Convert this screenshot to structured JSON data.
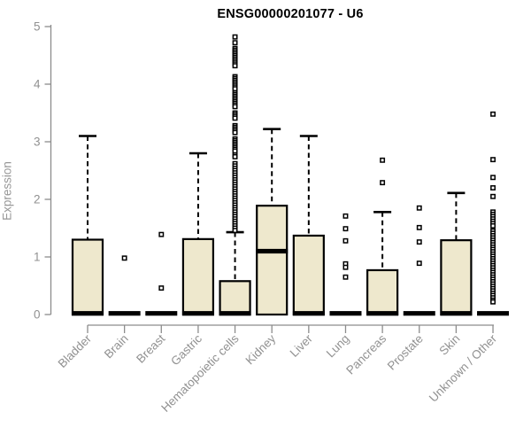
{
  "figure": {
    "title": "ENSG00000201077 - U6",
    "ylabel": "Expression"
  },
  "colors": {
    "box_fill": "#EEE8CD",
    "box_border": "#000000",
    "median": "#000000",
    "whisker": "#000000",
    "outlier_stroke": "#000000",
    "outlier_fill": "#FFFFFF",
    "axis": "#8C8C8C",
    "tick_label": "#919191",
    "title_color": "#000000"
  },
  "chart_data": {
    "type": "boxplot",
    "title": "ENSG00000201077 - U6",
    "xlabel": "",
    "ylabel": "Expression",
    "ylim": [
      0,
      5
    ],
    "yticks": [
      0,
      1,
      2,
      3,
      4,
      5
    ],
    "grid": false,
    "legend": false,
    "categories": [
      "Bladder",
      "Brain",
      "Breast",
      "Gastric",
      "Hematopoietic cells",
      "Kidney",
      "Liver",
      "Lung",
      "Pancreas",
      "Prostate",
      "Skin",
      "Unknown / Other"
    ],
    "series": [
      {
        "name": "Bladder",
        "q1": 0,
        "median": 0.02,
        "q3": 1.3,
        "whisker_low": 0,
        "whisker_high": 3.1,
        "outliers": []
      },
      {
        "name": "Brain",
        "q1": 0,
        "median": 0.02,
        "q3": 0,
        "whisker_low": 0,
        "whisker_high": 0,
        "outliers": [
          0.98
        ]
      },
      {
        "name": "Breast",
        "q1": 0,
        "median": 0.02,
        "q3": 0,
        "whisker_low": 0,
        "whisker_high": 0,
        "outliers": [
          1.39,
          0.46
        ]
      },
      {
        "name": "Gastric",
        "q1": 0,
        "median": 0.02,
        "q3": 1.31,
        "whisker_low": 0,
        "whisker_high": 2.8,
        "outliers": []
      },
      {
        "name": "Hematopoietic cells",
        "q1": 0,
        "median": 0.02,
        "q3": 0.58,
        "whisker_low": 0,
        "whisker_high": 1.43,
        "outliers": [
          4.82,
          4.72,
          4.62,
          4.59,
          4.56,
          4.53,
          4.5,
          4.47,
          4.44,
          4.41,
          4.38,
          4.35,
          4.32,
          4.13,
          4.1,
          4.07,
          4.04,
          4.01,
          3.98,
          3.95,
          3.92,
          3.85,
          3.82,
          3.79,
          3.76,
          3.73,
          3.7,
          3.67,
          3.64,
          3.61,
          3.5,
          3.47,
          3.44,
          3.41,
          3.28,
          3.25,
          3.22,
          3.19,
          3.16,
          3.05,
          3.02,
          2.99,
          2.96,
          2.93,
          2.9,
          2.87,
          2.84,
          2.77,
          2.74,
          2.62,
          2.58,
          2.54,
          2.5,
          2.46,
          2.42,
          2.38,
          2.34,
          2.3,
          2.26,
          2.22,
          2.18,
          2.14,
          2.1,
          2.06,
          2.02,
          1.98,
          1.94,
          1.9,
          1.86,
          1.82,
          1.78,
          1.74,
          1.7,
          1.66,
          1.62,
          1.58,
          1.54,
          1.5,
          1.46
        ]
      },
      {
        "name": "Kidney",
        "q1": 0,
        "median": 1.1,
        "q3": 1.89,
        "whisker_low": 0,
        "whisker_high": 3.22,
        "outliers": []
      },
      {
        "name": "Liver",
        "q1": 0,
        "median": 0.02,
        "q3": 1.37,
        "whisker_low": 0,
        "whisker_high": 3.1,
        "outliers": []
      },
      {
        "name": "Lung",
        "q1": 0,
        "median": 0.02,
        "q3": 0,
        "whisker_low": 0,
        "whisker_high": 0,
        "outliers": [
          1.71,
          1.49,
          1.28,
          0.88,
          0.82,
          0.65
        ]
      },
      {
        "name": "Pancreas",
        "q1": 0,
        "median": 0.02,
        "q3": 0.77,
        "whisker_low": 0,
        "whisker_high": 1.78,
        "outliers": [
          2.68,
          2.29
        ]
      },
      {
        "name": "Prostate",
        "q1": 0,
        "median": 0.02,
        "q3": 0,
        "whisker_low": 0,
        "whisker_high": 0,
        "outliers": [
          1.85,
          1.51,
          1.26,
          0.89
        ]
      },
      {
        "name": "Skin",
        "q1": 0,
        "median": 0.02,
        "q3": 1.29,
        "whisker_low": 0,
        "whisker_high": 2.11,
        "outliers": []
      },
      {
        "name": "Unknown / Other",
        "q1": 0,
        "median": 0.02,
        "q3": 0,
        "whisker_low": 0,
        "whisker_high": 0,
        "outliers": [
          3.48,
          2.69,
          2.38,
          2.2,
          2.05,
          1.78,
          1.74,
          1.7,
          1.66,
          1.62,
          1.58,
          1.54,
          1.45,
          1.41,
          1.37,
          1.33,
          1.29,
          1.25,
          1.21,
          1.17,
          1.13,
          1.09,
          1.05,
          1.01,
          0.97,
          0.93,
          0.89,
          0.85,
          0.81,
          0.77,
          0.73,
          0.69,
          0.65,
          0.61,
          0.57,
          0.53,
          0.49,
          0.45,
          0.41,
          0.37,
          0.33,
          0.29,
          0.25,
          0.22
        ]
      }
    ]
  }
}
